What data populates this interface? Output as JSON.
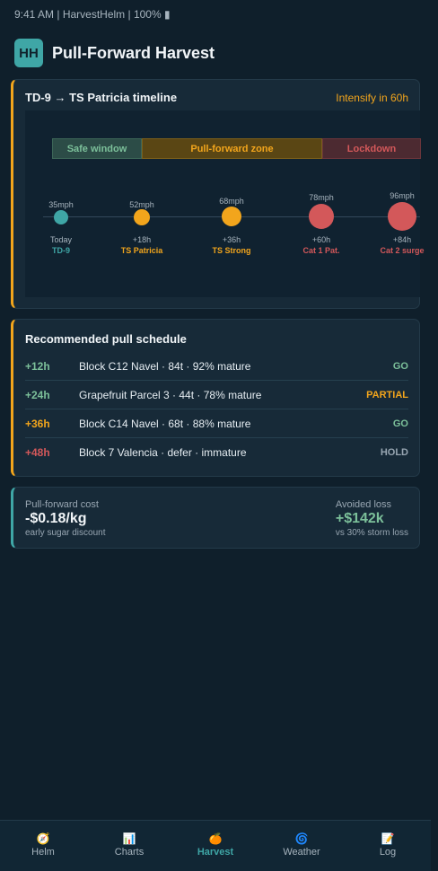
{
  "status_bar": {
    "text": "9:41 AM | HarvestHelm | 100% ▮"
  },
  "header": {
    "logo": "HH",
    "title": "Pull-Forward Harvest"
  },
  "timeline": {
    "title": "TD-9 → TS Patricia timeline",
    "intensify": "Intensify in 60h",
    "zones": {
      "safe": "Safe window",
      "pull": "Pull-forward zone",
      "lock": "Lockdown"
    },
    "events": [
      {
        "mph": "35mph",
        "when": "Today",
        "label": "TD-9",
        "color": "#3fa6a6"
      },
      {
        "mph": "52mph",
        "when": "+18h",
        "label": "TS Patricia",
        "color": "#f2a51c"
      },
      {
        "mph": "68mph",
        "when": "+36h",
        "label": "TS Strong",
        "color": "#f2a51c"
      },
      {
        "mph": "78mph",
        "when": "+60h",
        "label": "Cat 1 Pat.",
        "color": "#d3585a"
      },
      {
        "mph": "96mph",
        "when": "+84h",
        "label": "Cat 2 surge",
        "color": "#d3585a"
      }
    ]
  },
  "schedule": {
    "title": "Recommended pull schedule",
    "rows": [
      {
        "time": "+12h",
        "desc": "Block C12 Navel · 84t · 92% mature",
        "status": "GO",
        "time_color": "#7cc09a",
        "status_color": "#7cc09a"
      },
      {
        "time": "+24h",
        "desc": "Grapefruit Parcel 3 · 44t · 78% mature",
        "status": "PARTIAL",
        "time_color": "#7cc09a",
        "status_color": "#f2a51c"
      },
      {
        "time": "+36h",
        "desc": "Block C14 Navel · 68t · 88% mature",
        "status": "GO",
        "time_color": "#f2a51c",
        "status_color": "#7cc09a"
      },
      {
        "time": "+48h",
        "desc": "Block 7 Valencia · defer · immature",
        "status": "HOLD",
        "time_color": "#d3585a",
        "status_color": "#98a6b2"
      }
    ]
  },
  "cost": {
    "left": {
      "caption": "Pull-forward cost",
      "value": "-$0.18/kg",
      "sub": "early sugar discount"
    },
    "right": {
      "caption": "Avoided loss",
      "value": "+$142k",
      "sub": "vs 30% storm loss"
    }
  },
  "nav": {
    "items": [
      {
        "icon": "🧭",
        "label": "Helm"
      },
      {
        "icon": "📊",
        "label": "Charts"
      },
      {
        "icon": "🍊",
        "label": "Harvest"
      },
      {
        "icon": "🌀",
        "label": "Weather"
      },
      {
        "icon": "📝",
        "label": "Log"
      }
    ]
  },
  "colors": {
    "accent": "#3fa6a6",
    "warning": "#f2a51c",
    "danger": "#d3585a",
    "ok": "#7cc09a"
  }
}
